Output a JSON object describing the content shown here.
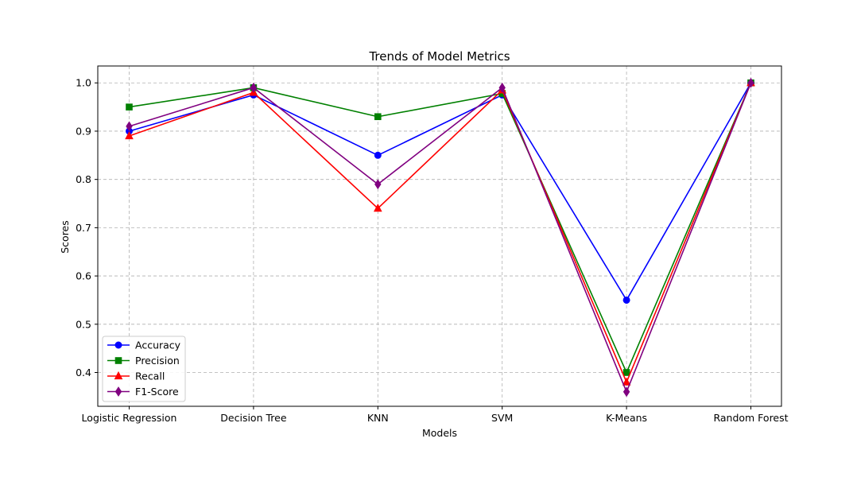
{
  "chart_data": {
    "type": "line",
    "title": "Trends of Model Metrics",
    "xlabel": "Models",
    "ylabel": "Scores",
    "categories": [
      "Logistic Regression",
      "Decision Tree",
      "KNN",
      "SVM",
      "K-Means",
      "Random Forest"
    ],
    "ylim": [
      0.33,
      1.035
    ],
    "yticks": [
      0.4,
      0.5,
      0.6,
      0.7,
      0.8,
      0.9,
      1.0
    ],
    "ytick_labels": [
      "0.4",
      "0.5",
      "0.6",
      "0.7",
      "0.8",
      "0.9",
      "1.0"
    ],
    "grid": true,
    "legend_position": "lower-left",
    "series": [
      {
        "name": "Accuracy",
        "color": "#0000ff",
        "marker": "circle",
        "values": [
          0.9,
          0.975,
          0.85,
          0.975,
          0.55,
          1.0
        ]
      },
      {
        "name": "Precision",
        "color": "#008000",
        "marker": "square",
        "values": [
          0.95,
          0.99,
          0.93,
          0.978,
          0.4,
          1.0
        ]
      },
      {
        "name": "Recall",
        "color": "#ff0000",
        "marker": "triangle",
        "values": [
          0.89,
          0.98,
          0.74,
          0.985,
          0.38,
          1.0
        ]
      },
      {
        "name": "F1-Score",
        "color": "#800080",
        "marker": "diamond",
        "values": [
          0.91,
          0.99,
          0.79,
          0.99,
          0.36,
          1.0
        ]
      }
    ]
  }
}
